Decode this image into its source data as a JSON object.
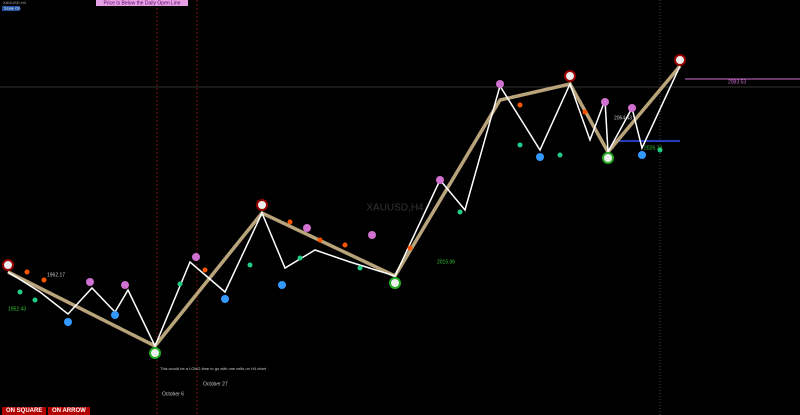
{
  "header": {
    "symbol_info": "XAUUSD,H4",
    "scale_button": "Scale On",
    "banner": "Price Is Below the Daily Open Line"
  },
  "chart": {
    "watermark": "XAUUSD,H4",
    "price_labels": [
      "1962.17",
      "1952.43",
      "2015.06",
      "2064.43",
      "2026.74",
      "2083.53"
    ],
    "note": "This would be a LONG time to go with one cells on H4 chart",
    "date_labels": [
      "October 6",
      "October 27"
    ]
  },
  "footer": {
    "buttons": [
      "ON SQUARE",
      "ON ARROW"
    ]
  }
}
